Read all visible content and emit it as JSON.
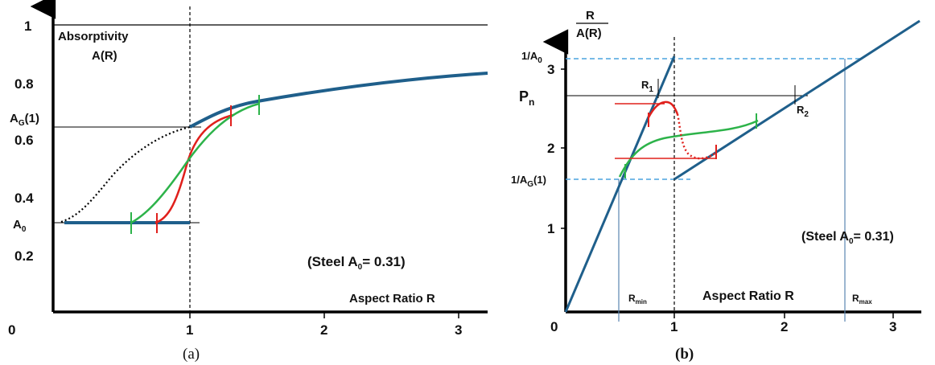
{
  "panel_a": {
    "caption": "(a)",
    "ylabel_line1": "Absorptivity",
    "ylabel_line2": "A(R)",
    "xlabel": "Aspect Ratio R",
    "note_pre": "(Steel  A",
    "note_sub": "0",
    "note_post": "= 0.31)",
    "ag_main": "A",
    "ag_sub": "G",
    "ag_post": "(1)",
    "a0_main": "A",
    "a0_sub": "0",
    "x_ticks": [
      "0",
      "1",
      "2",
      "3"
    ],
    "y_ticks": [
      "1",
      "0.8",
      "0.6",
      "0.4",
      "0.2"
    ]
  },
  "panel_b": {
    "caption": "(b)",
    "ylabel_num": "R",
    "ylabel_den": "A(R)",
    "xlabel": "Aspect Ratio R",
    "note_pre": "(Steel  A",
    "note_sub": "0",
    "note_post": "= 0.31)",
    "inv_a0_main": "1/A",
    "inv_a0_sub": "0",
    "inv_ag_main": "1/A",
    "inv_ag_sub": "G",
    "inv_ag_post": "(1)",
    "pn_main": "P",
    "pn_sub": "n",
    "r1_main": "R",
    "r1_sub": "1",
    "r2_main": "R",
    "r2_sub": "2",
    "rmin_main": "R",
    "rmin_sub": "min",
    "rmax_main": "R",
    "rmax_sub": "max",
    "x_ticks": [
      "0",
      "1",
      "2",
      "3"
    ],
    "y_ticks": [
      "3",
      "2",
      "1"
    ]
  },
  "colors": {
    "main_curve": "#1f5f8b",
    "red": "#e0201c",
    "green": "#2db34a",
    "dashed_blue": "#4aa3df",
    "thin_blue": "#5b86b0"
  },
  "chart_data": [
    {
      "type": "line",
      "xlabel": "Aspect Ratio R",
      "ylabel": "Absorptivity A(R)",
      "xlim": [
        0,
        3.2
      ],
      "ylim": [
        0.1,
        1.05
      ],
      "constants": {
        "A0": 0.31,
        "AG(1)": 0.645
      },
      "series": [
        {
          "x": [
            0.1,
            1.0
          ],
          "y": [
            0.31,
            0.31
          ]
        },
        {
          "x": [
            1.0,
            1.2,
            1.4,
            1.6,
            2.0,
            2.5,
            3.0,
            3.2
          ],
          "y": [
            0.645,
            0.695,
            0.72,
            0.74,
            0.77,
            0.8,
            0.825,
            0.835
          ]
        },
        {
          "x": [
            0.1,
            0.3,
            0.5,
            0.7,
            0.9,
            1.0
          ],
          "y": [
            0.31,
            0.37,
            0.47,
            0.56,
            0.62,
            0.645
          ]
        },
        {
          "x": [
            0.76,
            0.85,
            0.95,
            1.05,
            1.15,
            1.3
          ],
          "y": [
            0.31,
            0.36,
            0.5,
            0.6,
            0.66,
            0.69
          ]
        },
        {
          "x": [
            0.6,
            0.8,
            0.95,
            1.1,
            1.3,
            1.52
          ],
          "y": [
            0.31,
            0.42,
            0.53,
            0.64,
            0.7,
            0.725
          ]
        }
      ]
    },
    {
      "type": "line",
      "xlabel": "Aspect Ratio R",
      "ylabel": "R/A(R)",
      "xlim": [
        0,
        3.2
      ],
      "ylim": [
        0,
        3.6
      ],
      "constants": {
        "1/A0": 3.23,
        "1/AG(1)": 1.55,
        "Pn": 2.8,
        "Rmin": 0.5,
        "Rmax": 2.55
      },
      "series": [
        {
          "x": [
            0.0,
            1.0
          ],
          "y": [
            0.0,
            3.23
          ]
        },
        {
          "x": [
            1.0,
            3.3
          ],
          "y": [
            1.55,
            3.85
          ]
        },
        {
          "x": [
            0.5,
            0.8,
            1.1,
            1.5,
            1.75
          ],
          "y": [
            1.55,
            2.1,
            2.25,
            2.3,
            2.43
          ]
        },
        {
          "x": [
            0.75,
            0.87,
            0.97,
            1.05,
            1.25,
            1.38
          ],
          "y": [
            2.55,
            2.7,
            2.4,
            1.95,
            1.8,
            1.9
          ]
        }
      ]
    }
  ]
}
